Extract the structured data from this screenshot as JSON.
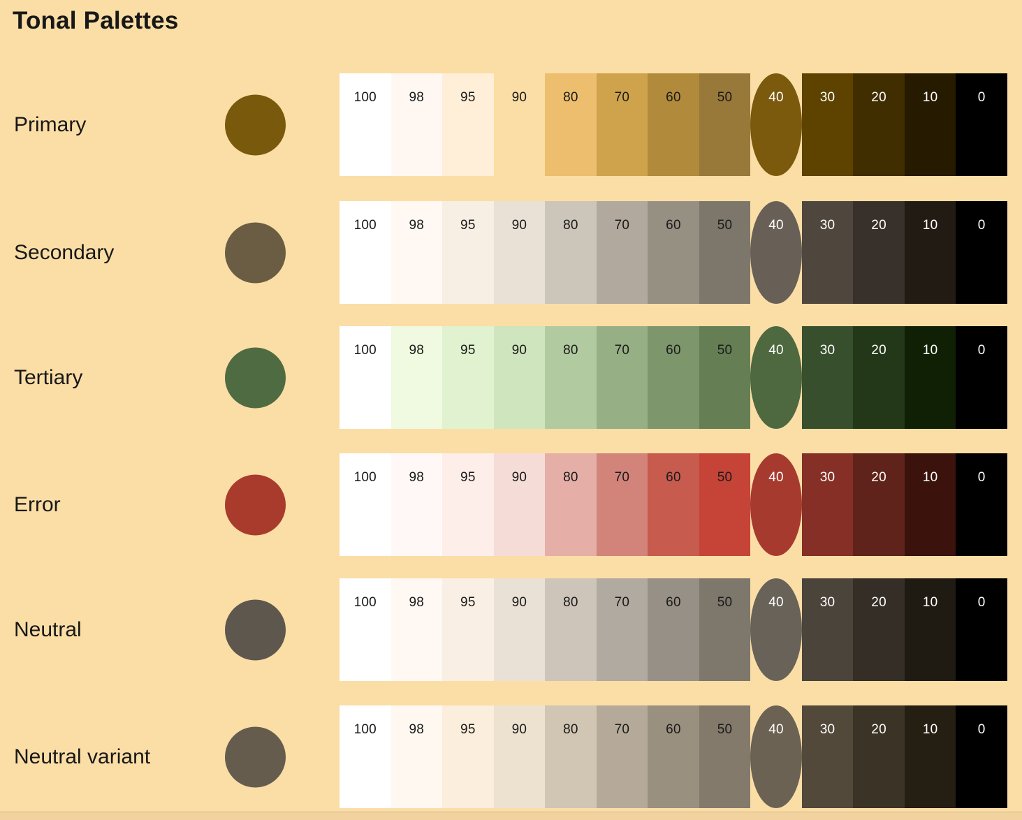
{
  "title": "Tonal Palettes",
  "colors": {
    "background": "#FBDEA6",
    "title_text": "#181818",
    "label_text": "#181818",
    "tone_dark_text": "#1A1A1A",
    "tone_light_text": "#FFFFFF",
    "bottom_edge": "#F2D3A0"
  },
  "tone_labels": [
    "100",
    "98",
    "95",
    "90",
    "80",
    "70",
    "60",
    "50",
    "40",
    "30",
    "20",
    "10",
    "0"
  ],
  "highlight_tone": "40",
  "dark_text_min_tone": 50,
  "palettes": [
    {
      "label": "Primary",
      "key_color": "#79590C",
      "tones": {
        "100": "#FFFFFF",
        "98": "#FFF8F2",
        "95": "#FFEFD9",
        "90": "#FBDEA6",
        "80": "#ECBE6D",
        "70": "#CFA34C",
        "60": "#B28A3B",
        "50": "#997939",
        "40": "#7B5A0D",
        "30": "#5D4200",
        "20": "#402D00",
        "10": "#261A00",
        "0": "#000000"
      }
    },
    {
      "label": "Secondary",
      "key_color": "#6B5D43",
      "tones": {
        "100": "#FFFFFF",
        "98": "#FFF8F3",
        "95": "#F7EEE4",
        "90": "#E9E1D5",
        "80": "#CCC5B9",
        "70": "#B1A99D",
        "60": "#969083",
        "50": "#7D766B",
        "40": "#686057",
        "30": "#4F473D",
        "20": "#38302A",
        "10": "#221B14",
        "0": "#000000"
      }
    },
    {
      "label": "Tertiary",
      "key_color": "#4F6B41",
      "tones": {
        "100": "#FFFFFF",
        "98": "#EFFAE0",
        "95": "#E0F2CF",
        "90": "#CFE5BD",
        "80": "#B2CA9F",
        "70": "#97AF84",
        "60": "#7E966C",
        "50": "#657E54",
        "40": "#4E683F",
        "30": "#384F2D",
        "20": "#233719",
        "10": "#102004",
        "0": "#000000"
      }
    },
    {
      "label": "Error",
      "key_color": "#A93B2C",
      "tones": {
        "100": "#FFFFFF",
        "98": "#FFF8F6",
        "95": "#FDEEEA",
        "90": "#F6DCD7",
        "80": "#E5AFA7",
        "70": "#D2847B",
        "60": "#C65B4E",
        "50": "#C54437",
        "40": "#A73A2F",
        "30": "#852F26",
        "20": "#5F231B",
        "10": "#3B120C",
        "0": "#000000"
      }
    },
    {
      "label": "Neutral",
      "key_color": "#5E574E",
      "tones": {
        "100": "#FFFFFF",
        "98": "#FFF8F3",
        "95": "#F9EFE4",
        "90": "#EAE1D6",
        "80": "#CDC5BA",
        "70": "#B1AAA0",
        "60": "#979086",
        "50": "#7D776C",
        "40": "#696259",
        "30": "#4B443B",
        "20": "#352E26",
        "10": "#1F1B13",
        "0": "#000000"
      }
    },
    {
      "label": "Neutral variant",
      "key_color": "#655C4E",
      "tones": {
        "100": "#FFFFFF",
        "98": "#FFF8F1",
        "95": "#FBEEDC",
        "90": "#EDE1CF",
        "80": "#D1C5B4",
        "70": "#B5AA99",
        "60": "#9A907F",
        "50": "#847A6B",
        "40": "#6B6253",
        "30": "#52493B",
        "20": "#3B3326",
        "10": "#251E12",
        "0": "#000000"
      }
    }
  ],
  "layout_row_tops": [
    105,
    288,
    467,
    649,
    828,
    1010
  ]
}
